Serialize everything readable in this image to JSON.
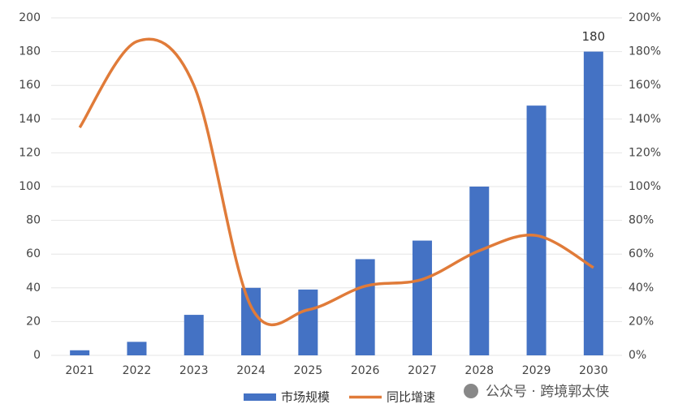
{
  "chart_data": {
    "type": "bar_line",
    "categories": [
      "2021",
      "2022",
      "2023",
      "2024",
      "2025",
      "2026",
      "2027",
      "2028",
      "2029",
      "2030"
    ],
    "series": [
      {
        "name": "市场规模",
        "color": "#4472c4",
        "type": "bar",
        "values": [
          3,
          8,
          24,
          40,
          39,
          57,
          68,
          100,
          148,
          180
        ]
      },
      {
        "name": "同比增速",
        "color": "#e07b39",
        "type": "line",
        "axis": "y2",
        "values": [
          135,
          186,
          160,
          29,
          27,
          41,
          45,
          62,
          71,
          52
        ]
      }
    ],
    "ylim": [
      0,
      200
    ],
    "yticks": [
      0,
      20,
      40,
      60,
      80,
      100,
      120,
      140,
      160,
      180,
      200
    ],
    "y2lim": [
      0,
      200
    ],
    "y2ticks": [
      {
        "value": 0,
        "label": "0%"
      },
      {
        "value": 20,
        "label": "20%"
      },
      {
        "value": 40,
        "label": "40%"
      },
      {
        "value": 60,
        "label": "60%"
      },
      {
        "value": 80,
        "label": "80%"
      },
      {
        "value": 100,
        "label": "100%"
      },
      {
        "value": 120,
        "label": "120%"
      },
      {
        "value": 140,
        "label": "140%"
      },
      {
        "value": 160,
        "label": "160%"
      },
      {
        "value": 180,
        "label": "180%"
      },
      {
        "value": 200,
        "label": "200%"
      }
    ],
    "data_label_index": 9,
    "grid": true,
    "legend": "bottom",
    "watermark": "公众号 · 跨境郭太侠"
  }
}
